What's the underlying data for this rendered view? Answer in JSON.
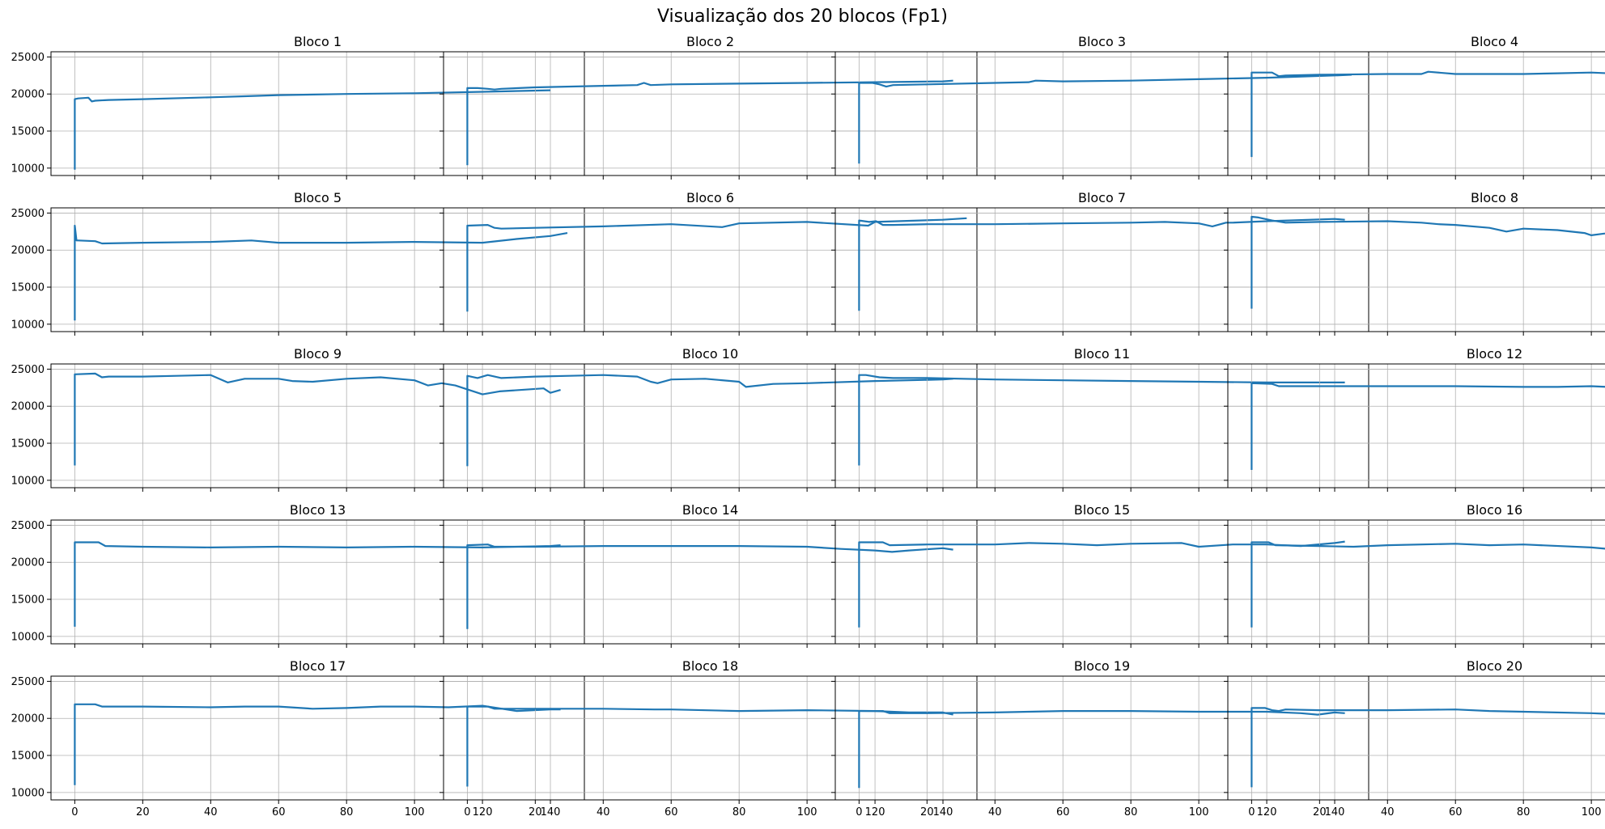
{
  "chart_data": {
    "type": "line",
    "title": "Visualização dos 20 blocos (Fp1)",
    "layout": {
      "rows": 5,
      "cols": 4,
      "sharex": true,
      "sharey": true
    },
    "xlim": [
      -7,
      150
    ],
    "ylim": [
      9000,
      25700
    ],
    "xticks": [
      0,
      20,
      40,
      60,
      80,
      100,
      120,
      140
    ],
    "yticks": [
      10000,
      15000,
      20000,
      25000
    ],
    "grid": true,
    "line_color": "#1f77b4",
    "panels": [
      {
        "title": "Bloco 1",
        "x": [
          0,
          0,
          1,
          4,
          5,
          6,
          10,
          20,
          40,
          50,
          60,
          80,
          100,
          120,
          140
        ],
        "y": [
          9800,
          19300,
          19400,
          19500,
          19000,
          19100,
          19200,
          19300,
          19550,
          19700,
          19850,
          20000,
          20100,
          20300,
          20500
        ]
      },
      {
        "title": "Bloco 2",
        "x": [
          0,
          0,
          3,
          6,
          8,
          10,
          20,
          40,
          50,
          52,
          54,
          60,
          80,
          100,
          120,
          140,
          143
        ],
        "y": [
          10400,
          20800,
          20800,
          20700,
          20600,
          20700,
          20900,
          21100,
          21200,
          21500,
          21200,
          21300,
          21400,
          21500,
          21600,
          21700,
          21800
        ]
      },
      {
        "title": "Bloco 3",
        "x": [
          0,
          0,
          4,
          6,
          8,
          10,
          20,
          40,
          50,
          52,
          60,
          80,
          100,
          120,
          140,
          145
        ],
        "y": [
          10600,
          21500,
          21500,
          21300,
          21000,
          21200,
          21300,
          21500,
          21600,
          21800,
          21700,
          21800,
          22000,
          22200,
          22500,
          22600
        ]
      },
      {
        "title": "Bloco 4",
        "x": [
          0,
          0,
          6,
          8,
          10,
          20,
          40,
          50,
          52,
          60,
          80,
          90,
          100,
          110,
          120,
          140,
          146
        ],
        "y": [
          11500,
          22900,
          22900,
          22400,
          22500,
          22600,
          22700,
          22700,
          23000,
          22700,
          22700,
          22800,
          22900,
          22700,
          22800,
          23300,
          23400
        ]
      },
      {
        "title": "Bloco 5",
        "x": [
          0,
          0,
          0.5,
          1,
          6,
          8,
          20,
          40,
          52,
          60,
          80,
          100,
          120,
          130,
          140,
          145
        ],
        "y": [
          10500,
          23300,
          21300,
          21300,
          21200,
          20900,
          21000,
          21100,
          21300,
          21000,
          21000,
          21100,
          21000,
          21500,
          21900,
          22300
        ]
      },
      {
        "title": "Bloco 6",
        "x": [
          0,
          0,
          6,
          8,
          10,
          20,
          40,
          60,
          75,
          80,
          100,
          118,
          120,
          140,
          147
        ],
        "y": [
          11700,
          23300,
          23400,
          23000,
          22900,
          23000,
          23200,
          23500,
          23100,
          23600,
          23800,
          23300,
          23800,
          24100,
          24300
        ]
      },
      {
        "title": "Bloco 7",
        "x": [
          0,
          0,
          3,
          5,
          7,
          10,
          20,
          40,
          60,
          80,
          90,
          100,
          104,
          108,
          110,
          120,
          140,
          143
        ],
        "y": [
          11800,
          24000,
          23800,
          23900,
          23400,
          23400,
          23500,
          23500,
          23600,
          23700,
          23800,
          23600,
          23200,
          23700,
          23700,
          23900,
          24200,
          24100
        ]
      },
      {
        "title": "Bloco 8",
        "x": [
          0,
          0,
          2,
          6,
          10,
          20,
          40,
          50,
          55,
          60,
          70,
          75,
          80,
          90,
          98,
          100,
          110,
          120,
          125,
          140,
          143
        ],
        "y": [
          12100,
          24500,
          24400,
          24000,
          23700,
          23800,
          23900,
          23700,
          23500,
          23400,
          23000,
          22500,
          22900,
          22700,
          22300,
          22000,
          22600,
          22200,
          21900,
          22800,
          23000
        ]
      },
      {
        "title": "Bloco 9",
        "x": [
          0,
          0,
          6,
          8,
          10,
          20,
          30,
          40,
          45,
          50,
          60,
          64,
          70,
          80,
          90,
          100,
          104,
          108,
          112,
          120,
          125,
          138,
          140,
          143
        ],
        "y": [
          12000,
          24300,
          24400,
          23900,
          24000,
          24000,
          24100,
          24200,
          23200,
          23700,
          23700,
          23400,
          23300,
          23700,
          23900,
          23500,
          22800,
          23100,
          22800,
          21600,
          22000,
          22400,
          21800,
          22200
        ]
      },
      {
        "title": "Bloco 10",
        "x": [
          0,
          0,
          3,
          6,
          10,
          20,
          30,
          40,
          50,
          54,
          56,
          60,
          70,
          80,
          82,
          90,
          100,
          120,
          130,
          140,
          143
        ],
        "y": [
          11900,
          24100,
          23800,
          24200,
          23800,
          24000,
          24100,
          24200,
          24000,
          23300,
          23100,
          23600,
          23700,
          23300,
          22600,
          23000,
          23100,
          23400,
          23500,
          23600,
          23700
        ]
      },
      {
        "title": "Bloco 11",
        "x": [
          0,
          0,
          2,
          6,
          10,
          20,
          40,
          60,
          80,
          100,
          120,
          140,
          143
        ],
        "y": [
          12000,
          24200,
          24200,
          23900,
          23800,
          23800,
          23600,
          23500,
          23400,
          23300,
          23200,
          23200,
          23200
        ]
      },
      {
        "title": "Bloco 12",
        "x": [
          0,
          0,
          6,
          8,
          20,
          40,
          60,
          80,
          90,
          100,
          110,
          115,
          120,
          130,
          140,
          143
        ],
        "y": [
          11400,
          23100,
          23000,
          22700,
          22700,
          22700,
          22700,
          22600,
          22600,
          22700,
          22500,
          22100,
          22400,
          22400,
          22600,
          22700
        ]
      },
      {
        "title": "Bloco 13",
        "x": [
          0,
          0,
          7,
          9,
          20,
          40,
          60,
          80,
          100,
          120,
          140,
          143
        ],
        "y": [
          11300,
          22700,
          22700,
          22200,
          22100,
          22000,
          22100,
          22000,
          22100,
          22000,
          22200,
          22300
        ]
      },
      {
        "title": "Bloco 14",
        "x": [
          0,
          0,
          6,
          8,
          20,
          40,
          60,
          80,
          100,
          110,
          120,
          125,
          130,
          140,
          143
        ],
        "y": [
          11000,
          22300,
          22400,
          22100,
          22100,
          22200,
          22200,
          22200,
          22100,
          21800,
          21600,
          21400,
          21600,
          21900,
          21700
        ]
      },
      {
        "title": "Bloco 15",
        "x": [
          0,
          0,
          7,
          9,
          20,
          40,
          50,
          60,
          70,
          80,
          95,
          100,
          110,
          120,
          130,
          140,
          143
        ],
        "y": [
          11200,
          22700,
          22700,
          22300,
          22400,
          22400,
          22600,
          22500,
          22300,
          22500,
          22600,
          22100,
          22400,
          22400,
          22200,
          22600,
          22800
        ]
      },
      {
        "title": "Bloco 16",
        "x": [
          0,
          0,
          5,
          7,
          20,
          30,
          40,
          60,
          70,
          80,
          100,
          110,
          120,
          130,
          140,
          143
        ],
        "y": [
          11200,
          22700,
          22700,
          22300,
          22200,
          22100,
          22300,
          22500,
          22300,
          22400,
          22000,
          21600,
          21400,
          21300,
          21400,
          21300
        ]
      },
      {
        "title": "Bloco 17",
        "x": [
          0,
          0,
          6,
          8,
          20,
          40,
          50,
          60,
          70,
          80,
          90,
          100,
          110,
          120,
          130,
          140,
          143
        ],
        "y": [
          11000,
          21900,
          21900,
          21600,
          21600,
          21500,
          21600,
          21600,
          21300,
          21400,
          21600,
          21600,
          21500,
          21700,
          21000,
          21200,
          21200
        ]
      },
      {
        "title": "Bloco 18",
        "x": [
          0,
          0,
          6,
          8,
          20,
          40,
          55,
          60,
          80,
          100,
          120,
          130,
          140,
          143
        ],
        "y": [
          10800,
          21600,
          21600,
          21300,
          21300,
          21300,
          21200,
          21200,
          21000,
          21100,
          21000,
          20800,
          20800,
          20500
        ]
      },
      {
        "title": "Bloco 19",
        "x": [
          0,
          0,
          7,
          9,
          20,
          40,
          50,
          60,
          80,
          100,
          120,
          130,
          135,
          140,
          143
        ],
        "y": [
          10600,
          21000,
          21000,
          20700,
          20700,
          20800,
          20900,
          21000,
          21000,
          20900,
          20900,
          20700,
          20500,
          20800,
          20700
        ]
      },
      {
        "title": "Bloco 20",
        "x": [
          0,
          0,
          4,
          6,
          8,
          10,
          20,
          40,
          60,
          70,
          80,
          100,
          110,
          120,
          130,
          135,
          138,
          140,
          143
        ],
        "y": [
          10700,
          21400,
          21400,
          21100,
          21000,
          21200,
          21100,
          21100,
          21200,
          21000,
          20900,
          20700,
          20500,
          20300,
          20100,
          19800,
          19700,
          20000,
          19900
        ]
      }
    ]
  }
}
